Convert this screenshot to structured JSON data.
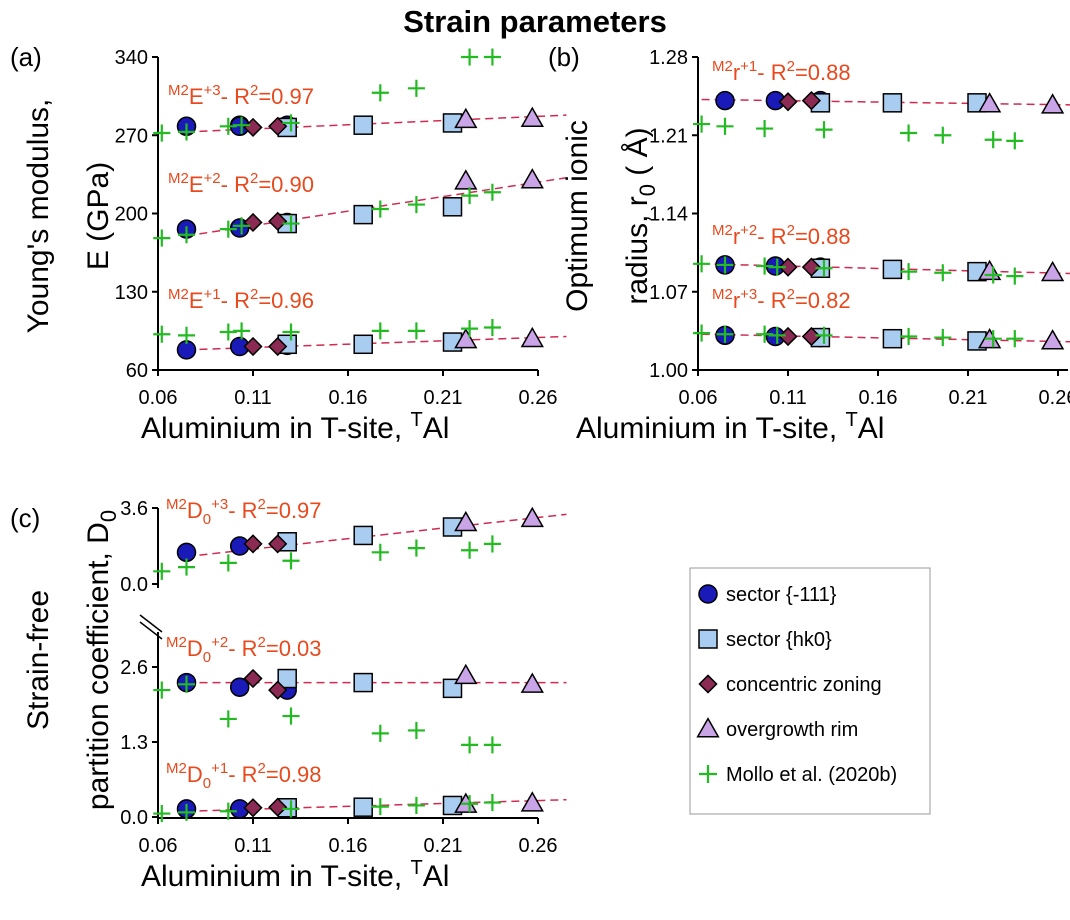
{
  "figure": {
    "title": "Strain parameters"
  },
  "colors": {
    "sector_111": "#1a1ab8",
    "sector_hk0": "#a9cdf0",
    "concentric": "#8b2a52",
    "overgrowth": "#c9a4e6",
    "mollo": "#22bb22",
    "trend": "#d02a52",
    "annotation": "#e8491d"
  },
  "legend": {
    "items": [
      {
        "label": "sector {-111}",
        "marker": "circle",
        "color": "#1a1ab8"
      },
      {
        "label": "sector {hk0}",
        "marker": "square",
        "color": "#a9cdf0"
      },
      {
        "label": "concentric zoning",
        "marker": "diamond",
        "color": "#8b2a52"
      },
      {
        "label": "overgrowth rim",
        "marker": "triangle",
        "color": "#c9a4e6"
      },
      {
        "label": "Mollo et al. (2020b)",
        "marker": "plus",
        "color": "#22bb22"
      }
    ]
  },
  "chart_data": [
    {
      "type": "scatter",
      "panel": "(a)",
      "xlabel": "Aluminium in T-site, TAl",
      "ylabel": "Young's modulus, E (GPa)",
      "xlim": [
        0.06,
        0.26
      ],
      "ylim": [
        60,
        340
      ],
      "xticks": [
        "0.06",
        "0.11",
        "0.16",
        "0.21",
        "0.26"
      ],
      "yticks": [
        "60",
        "130",
        "200",
        "270",
        "340"
      ],
      "grid": false,
      "series": [
        {
          "name": "sector {-111}",
          "marker": "circle",
          "x": [
            0.075,
            0.103,
            0.103,
            0.128,
            0.075,
            0.103,
            0.128,
            0.075,
            0.103,
            0.128
          ],
          "y": [
            278,
            279,
            278,
            279,
            186,
            187,
            192,
            78,
            81,
            82
          ]
        },
        {
          "name": "sector {hk0}",
          "marker": "square",
          "x": [
            0.128,
            0.168,
            0.215,
            0.128,
            0.168,
            0.215,
            0.128,
            0.168,
            0.215
          ],
          "y": [
            277,
            279,
            281,
            191,
            199,
            206,
            83,
            83,
            85
          ]
        },
        {
          "name": "concentric zoning",
          "marker": "diamond",
          "x": [
            0.11,
            0.123,
            0.11,
            0.123,
            0.11,
            0.123
          ],
          "y": [
            277,
            278,
            192,
            193,
            81,
            81
          ]
        },
        {
          "name": "overgrowth rim",
          "marker": "triangle",
          "x": [
            0.222,
            0.257,
            0.222,
            0.257,
            0.222,
            0.257
          ],
          "y": [
            284,
            285,
            229,
            230,
            87,
            88
          ]
        },
        {
          "name": "Mollo et al. (2020b)",
          "marker": "plus",
          "x": [
            0.062,
            0.075,
            0.097,
            0.104,
            0.13,
            0.177,
            0.196,
            0.224,
            0.236,
            0.062,
            0.075,
            0.097,
            0.104,
            0.13,
            0.177,
            0.196,
            0.224,
            0.236,
            0.062,
            0.075,
            0.097,
            0.104,
            0.13,
            0.177,
            0.196,
            0.224,
            0.236
          ],
          "y": [
            272,
            273,
            278,
            279,
            281,
            308,
            312,
            340,
            340,
            178,
            181,
            186,
            189,
            191,
            204,
            208,
            216,
            219,
            92,
            91,
            94,
            95,
            94,
            95,
            95,
            97,
            98
          ]
        }
      ],
      "trendlines": [
        {
          "label": "M2E+3 - R2=0.97",
          "x": [
            0.075,
            0.275
          ],
          "y": [
            273,
            288
          ]
        },
        {
          "label": "M2E+2 - R2=0.90",
          "x": [
            0.075,
            0.275
          ],
          "y": [
            180,
            232
          ]
        },
        {
          "label": "M2E+1 - R2=0.96",
          "x": [
            0.075,
            0.275
          ],
          "y": [
            78,
            90
          ]
        }
      ]
    },
    {
      "type": "scatter",
      "panel": "(b)",
      "xlabel": "Aluminium in T-site, TAl",
      "ylabel": "Optimum ionic radius, r0 (Å)",
      "xlim": [
        0.06,
        0.26
      ],
      "ylim": [
        1.0,
        1.28
      ],
      "xticks": [
        "0.06",
        "0.11",
        "0.16",
        "0.21",
        "0.26"
      ],
      "yticks": [
        "1.00",
        "1.07",
        "1.14",
        "1.21",
        "1.28"
      ],
      "grid": false,
      "series": [
        {
          "name": "sector {-111}",
          "marker": "circle",
          "x": [
            0.075,
            0.103,
            0.128,
            0.075,
            0.103,
            0.128,
            0.075,
            0.103,
            0.128
          ],
          "y": [
            1.241,
            1.241,
            1.241,
            1.094,
            1.093,
            1.092,
            1.031,
            1.03,
            1.029
          ]
        },
        {
          "name": "sector {hk0}",
          "marker": "square",
          "x": [
            0.128,
            0.168,
            0.215,
            0.128,
            0.168,
            0.215,
            0.128,
            0.168,
            0.215
          ],
          "y": [
            1.239,
            1.239,
            1.239,
            1.091,
            1.09,
            1.088,
            1.029,
            1.028,
            1.026
          ]
        },
        {
          "name": "concentric zoning",
          "marker": "diamond",
          "x": [
            0.11,
            0.123,
            0.11,
            0.123,
            0.11,
            0.123
          ],
          "y": [
            1.24,
            1.241,
            1.092,
            1.092,
            1.03,
            1.03
          ]
        },
        {
          "name": "overgrowth rim",
          "marker": "triangle",
          "x": [
            0.222,
            0.257,
            0.222,
            0.257,
            0.222,
            0.257
          ],
          "y": [
            1.238,
            1.237,
            1.088,
            1.087,
            1.027,
            1.026
          ]
        },
        {
          "name": "Mollo et al. (2020b)",
          "marker": "plus",
          "x": [
            0.062,
            0.075,
            0.097,
            0.13,
            0.177,
            0.196,
            0.224,
            0.236,
            0.062,
            0.075,
            0.097,
            0.104,
            0.13,
            0.177,
            0.196,
            0.224,
            0.236,
            0.062,
            0.075,
            0.097,
            0.104,
            0.13,
            0.177,
            0.196,
            0.224,
            0.236
          ],
          "y": [
            1.22,
            1.218,
            1.216,
            1.215,
            1.212,
            1.21,
            1.206,
            1.205,
            1.095,
            1.094,
            1.093,
            1.092,
            1.091,
            1.088,
            1.087,
            1.085,
            1.084,
            1.033,
            1.032,
            1.032,
            1.031,
            1.031,
            1.03,
            1.029,
            1.028,
            1.028
          ]
        }
      ],
      "trendlines": [
        {
          "label": "M2r+1 - R2=0.88",
          "x": [
            0.062,
            0.275
          ],
          "y": [
            1.242,
            1.237
          ]
        },
        {
          "label": "M2r+2 - R2=0.88",
          "x": [
            0.062,
            0.275
          ],
          "y": [
            1.095,
            1.086
          ]
        },
        {
          "label": "M2r+3 - R2=0.82",
          "x": [
            0.062,
            0.275
          ],
          "y": [
            1.032,
            1.025
          ]
        }
      ]
    },
    {
      "type": "scatter",
      "panel": "(c)",
      "xlabel": "Aluminium in T-site, TAl",
      "ylabel": "Strain-free partition coefficient, D0",
      "xlim": [
        0.06,
        0.26
      ],
      "upper_ylim": [
        0.0,
        3.6
      ],
      "upper_yticks": [
        "0.0",
        "3.6"
      ],
      "lower_ylim": [
        0.0,
        2.6
      ],
      "lower_yticks": [
        "0.0",
        "1.3",
        "2.6"
      ],
      "xticks": [
        "0.06",
        "0.11",
        "0.16",
        "0.21",
        "0.26"
      ],
      "axis_break": true,
      "grid": false,
      "upper_series": [
        {
          "name": "sector {-111}",
          "marker": "circle",
          "x": [
            0.075,
            0.103
          ],
          "y": [
            1.5,
            1.8
          ]
        },
        {
          "name": "sector {hk0}",
          "marker": "square",
          "x": [
            0.128,
            0.168,
            0.215
          ],
          "y": [
            2.0,
            2.3,
            2.7
          ]
        },
        {
          "name": "concentric zoning",
          "marker": "diamond",
          "x": [
            0.11,
            0.123
          ],
          "y": [
            1.9,
            1.9
          ]
        },
        {
          "name": "overgrowth rim",
          "marker": "triangle",
          "x": [
            0.222,
            0.257
          ],
          "y": [
            2.9,
            3.1
          ]
        },
        {
          "name": "Mollo et al. (2020b)",
          "marker": "plus",
          "x": [
            0.062,
            0.075,
            0.097,
            0.13,
            0.177,
            0.196,
            0.224,
            0.236
          ],
          "y": [
            0.6,
            0.8,
            1.0,
            1.1,
            1.5,
            1.7,
            1.6,
            1.9
          ]
        }
      ],
      "lower_series": [
        {
          "name": "sector {-111}",
          "marker": "circle",
          "x": [
            0.075,
            0.103,
            0.128,
            0.075,
            0.103,
            0.128
          ],
          "y": [
            2.33,
            2.25,
            2.2,
            0.14,
            0.14,
            0.16
          ]
        },
        {
          "name": "sector {hk0}",
          "marker": "square",
          "x": [
            0.128,
            0.168,
            0.215,
            0.128,
            0.168,
            0.215
          ],
          "y": [
            2.4,
            2.33,
            2.23,
            0.16,
            0.17,
            0.2
          ]
        },
        {
          "name": "concentric zoning",
          "marker": "diamond",
          "x": [
            0.11,
            0.123,
            0.11,
            0.123
          ],
          "y": [
            2.4,
            2.2,
            0.16,
            0.17
          ]
        },
        {
          "name": "overgrowth rim",
          "marker": "triangle",
          "x": [
            0.222,
            0.257,
            0.222,
            0.257
          ],
          "y": [
            2.45,
            2.3,
            0.22,
            0.24
          ]
        },
        {
          "name": "Mollo et al. (2020b)",
          "marker": "plus",
          "x": [
            0.062,
            0.075,
            0.097,
            0.13,
            0.177,
            0.196,
            0.224,
            0.236,
            0.062,
            0.075,
            0.097,
            0.13,
            0.177,
            0.196,
            0.224,
            0.236
          ],
          "y": [
            2.2,
            2.3,
            1.7,
            1.75,
            1.45,
            1.5,
            1.25,
            1.25,
            0.06,
            0.08,
            0.1,
            0.14,
            0.18,
            0.2,
            0.23,
            0.25
          ]
        }
      ],
      "trendlines": [
        {
          "label": "M2D0+3 - R2=0.97",
          "part": "upper",
          "x": [
            0.075,
            0.275
          ],
          "y": [
            1.3,
            3.3
          ]
        },
        {
          "label": "M2D0+2 - R2=0.03",
          "part": "lower",
          "x": [
            0.075,
            0.275
          ],
          "y": [
            2.33,
            2.33
          ]
        },
        {
          "label": "M2D0+1 - R2=0.98",
          "part": "lower",
          "x": [
            0.075,
            0.275
          ],
          "y": [
            0.1,
            0.3
          ]
        }
      ]
    }
  ],
  "labels": {
    "a": "(a)",
    "b": "(b)",
    "c": "(c)",
    "ticks_x": [
      "0.06",
      "0.11",
      "0.16",
      "0.21",
      "0.26"
    ],
    "ticks_a_y": [
      "60",
      "130",
      "200",
      "270",
      "340"
    ],
    "ticks_b_y": [
      "1.00",
      "1.07",
      "1.14",
      "1.21",
      "1.28"
    ],
    "ticks_c_upper": [
      "0.0",
      "3.6"
    ],
    "ticks_c_lower": [
      "0.0",
      "1.3",
      "2.6"
    ],
    "xlabel_main": "Aluminium in T-site, ",
    "xlabel_sup": "T",
    "xlabel_end": "Al",
    "ylabel_a_1": "Young's modulus,",
    "ylabel_a_2": "E (GPa)",
    "ylabel_b_1": "Optimum ionic",
    "ylabel_b_2": "radius, r",
    "ylabel_b_sub": "0",
    "ylabel_b_3": " ( Å)",
    "ylabel_c_1": "Strain-free",
    "ylabel_c_2": "partition coefficient, D",
    "ylabel_c_sub": "0"
  },
  "annotations": {
    "a1": {
      "pre": "M2",
      "main": "E",
      "sup": "+3",
      "tail": "- R",
      "r2sup": "2",
      "val": "=0.97"
    },
    "a2": {
      "pre": "M2",
      "main": "E",
      "sup": "+2",
      "tail": "- R",
      "r2sup": "2",
      "val": "=0.90"
    },
    "a3": {
      "pre": "M2",
      "main": "E",
      "sup": "+1",
      "tail": "- R",
      "r2sup": "2",
      "val": "=0.96"
    },
    "b1": {
      "pre": "M2",
      "main": "r",
      "sup": "+1",
      "tail": "- R",
      "r2sup": "2",
      "val": "=0.88"
    },
    "b2": {
      "pre": "M2",
      "main": "r",
      "sup": "+2",
      "tail": "- R",
      "r2sup": "2",
      "val": "=0.88"
    },
    "b3": {
      "pre": "M2",
      "main": "r",
      "sup": "+3",
      "tail": "- R",
      "r2sup": "2",
      "val": "=0.82"
    },
    "c1": {
      "pre": "M2",
      "main": "D",
      "sub": "0",
      "sup": "+3",
      "tail": "- R",
      "r2sup": "2",
      "val": "=0.97"
    },
    "c2": {
      "pre": "M2",
      "main": "D",
      "sub": "0",
      "sup": "+2",
      "tail": "- R",
      "r2sup": "2",
      "val": "=0.03"
    },
    "c3": {
      "pre": "M2",
      "main": "D",
      "sub": "0",
      "sup": "+1",
      "tail": "- R",
      "r2sup": "2",
      "val": "=0.98"
    }
  }
}
